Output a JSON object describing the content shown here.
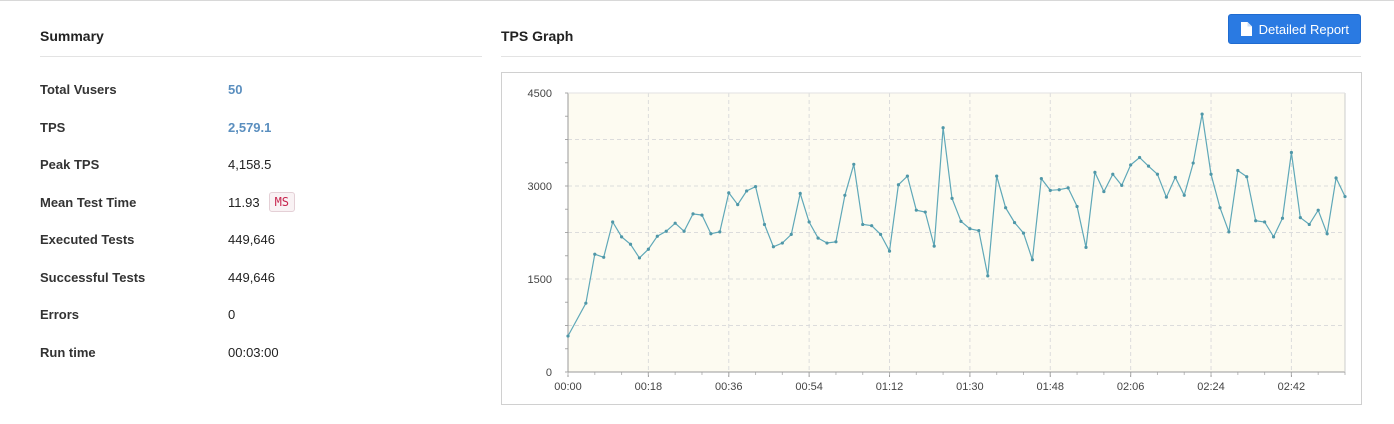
{
  "summary": {
    "title": "Summary",
    "rows": [
      {
        "label": "Total Vusers",
        "value": "50"
      },
      {
        "label": "TPS",
        "value": "2,579.1"
      },
      {
        "label": "Peak TPS",
        "value": "4,158.5"
      },
      {
        "label": "Mean Test Time",
        "value": "11.93",
        "unit": "MS"
      },
      {
        "label": "Executed Tests",
        "value": "449,646"
      },
      {
        "label": "Successful Tests",
        "value": "449,646"
      },
      {
        "label": "Errors",
        "value": "0"
      },
      {
        "label": "Run time",
        "value": "00:03:00"
      }
    ]
  },
  "graph": {
    "title": "TPS Graph",
    "report_button_label": "Detailed Report",
    "report_button_icon": "document-icon",
    "accent_color": "#2a7ae2",
    "line_color": "#5fa8b8",
    "plot_background": "#fdfbf1"
  },
  "chart_data": {
    "type": "line",
    "x_unit": "seconds",
    "xlim": [
      0,
      174
    ],
    "ylim": [
      0,
      4500
    ],
    "y_ticks": [
      "0",
      "1500",
      "3000",
      "4500"
    ],
    "x_ticks": [
      "00:00",
      "00:18",
      "00:36",
      "00:54",
      "01:12",
      "01:30",
      "01:48",
      "02:06",
      "02:24",
      "02:42"
    ],
    "grid": true,
    "series": [
      {
        "x": [
          0,
          4,
          6,
          8,
          10,
          12,
          14,
          16,
          18,
          20,
          22,
          24,
          26,
          28,
          30,
          32,
          34,
          36,
          38,
          40,
          42,
          44,
          46,
          48,
          50,
          52,
          54,
          56,
          58,
          60,
          62,
          64,
          66,
          68,
          70,
          72,
          74,
          76,
          78,
          80,
          82,
          84,
          86,
          88,
          90,
          92,
          94,
          96,
          98,
          100,
          102,
          104,
          106,
          108,
          110,
          112,
          114,
          116,
          118,
          120,
          122,
          124,
          126,
          128,
          130,
          132,
          134,
          136,
          138,
          140,
          142,
          144,
          146,
          148,
          150,
          152,
          154,
          156,
          158,
          160,
          162,
          164,
          166,
          168,
          170,
          172,
          174
        ],
        "values": [
          580,
          1110,
          1900,
          1850,
          2420,
          2180,
          2060,
          1840,
          1980,
          2190,
          2270,
          2400,
          2270,
          2550,
          2530,
          2230,
          2260,
          2890,
          2700,
          2920,
          2990,
          2380,
          2020,
          2080,
          2220,
          2880,
          2420,
          2160,
          2080,
          2100,
          2850,
          3350,
          2380,
          2360,
          2220,
          1950,
          3020,
          3160,
          2610,
          2580,
          2030,
          3940,
          2800,
          2430,
          2310,
          2280,
          1550,
          3160,
          2650,
          2410,
          2240,
          1810,
          3120,
          2930,
          2940,
          2970,
          2670,
          2010,
          3220,
          2910,
          3190,
          3010,
          3340,
          3460,
          3320,
          3190,
          2820,
          3140,
          2850,
          3370,
          4160,
          3190,
          2650,
          2260,
          3250,
          3150,
          2440,
          2420,
          2180,
          2480,
          3540,
          2490,
          2380,
          2610,
          2230,
          3130,
          2830
        ]
      }
    ]
  }
}
